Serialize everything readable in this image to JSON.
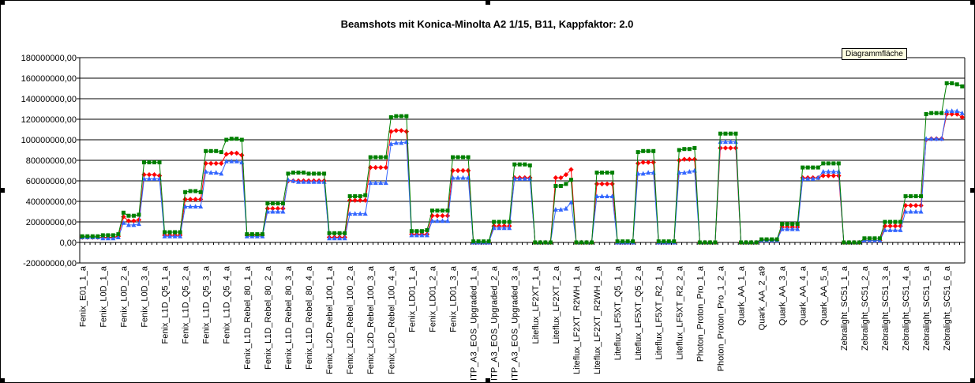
{
  "tooltip": "Diagrammfläche",
  "colors": {
    "red": "#ff0000",
    "blue": "#3366ff",
    "green": "#008000",
    "grid": "#000000",
    "background": "#ffffff"
  },
  "chart_data": {
    "type": "line",
    "title": "Beamshots mit Konica-Minolta A2 1/15, B11, Kappfaktor: 2.0",
    "xlabel": "",
    "ylabel": "",
    "ylim": [
      -20000000,
      180000000
    ],
    "yticks": [
      -20000000,
      0,
      20000000,
      40000000,
      60000000,
      80000000,
      100000000,
      120000000,
      140000000,
      160000000,
      180000000
    ],
    "ytick_labels": [
      "-20000000,00",
      "0,00",
      "20000000,00",
      "40000000,00",
      "60000000,00",
      "80000000,00",
      "100000000,00",
      "120000000,00",
      "140000000,00",
      "160000000,00",
      "180000000,00"
    ],
    "grid": true,
    "legend": "none",
    "categories": [
      "Fenix_E01_1_a",
      "Fenix_L0D_1_a",
      "Fenix_L0D_2_a",
      "Fenix_L0D_3_a",
      "Fenix_L1D_Q5_1_a",
      "Fenix_L1D_Q5_2_a",
      "Fenix_L1D_Q5_3_a",
      "Fenix_L1D_Q5_4_a",
      "Fenix_L1D_Rebel_80_1_a",
      "Fenix_L1D_Rebel_80_2_a",
      "Fenix_L1D_Rebel_80_3_a",
      "Fenix_L1D_Rebel_80_4_a",
      "Fenix_L2D_Rebel_100_1_a",
      "Fenix_L2D_Rebel_100_2_a",
      "Fenix_L2D_Rebel_100_3_a",
      "Fenix_L2D_Rebel_100_4_a",
      "Fenix_LD01_1_a",
      "Fenix_LD01_2_a",
      "Fenix_LD01_3_a",
      "ITP_A3_EOS_Upgraded_1_a",
      "ITP_A3_EOS_Upgraded_2_a",
      "ITP_A3_EOS_Upgraded_3_a",
      "Liteflux_LF2XT_1_a",
      "Liteflux_LF2XT_2_a",
      "Liteflux_LF2XT_R2WH_1_a",
      "Liteflux_LF2XT_R2WH_2_a",
      "Liteflux_LF5XT_Q5_1_a",
      "Liteflux_LF5XT_Q5_2_a",
      "Liteflux_LF5XT_R2_1_a",
      "Liteflux_LF5XT_R2_2_a",
      "Photon_Proton_Pro_1_a",
      "Photon_Proton_Pro_1_2_a",
      "Quark_AA_1_a",
      "Quark_AA_2_a9",
      "Quark_AA_3_a",
      "Quark_AA_4_a",
      "Quark_AA_5_a",
      "Zebralight_SC51_1_a",
      "Zebralight_SC51_2_a",
      "Zebralight_SC51_3_a",
      "Zebralight_SC51_4_a",
      "Zebralight_SC51_5_a",
      "Zebralight_SC51_6_a"
    ],
    "points_per_category": 4,
    "series": [
      {
        "color": "#ff0000",
        "marker": "diamond",
        "values": [
          [
            5000000,
            5000000,
            5000000,
            5000000
          ],
          [
            5000000,
            5000000,
            5000000,
            6000000
          ],
          [
            25000000,
            21000000,
            21000000,
            22000000
          ],
          [
            66000000,
            66000000,
            66000000,
            65000000
          ],
          [
            7000000,
            7000000,
            7000000,
            7000000
          ],
          [
            42000000,
            42000000,
            42000000,
            42000000
          ],
          [
            77000000,
            77000000,
            77000000,
            77000000
          ],
          [
            86000000,
            87000000,
            87000000,
            85000000
          ],
          [
            7000000,
            7000000,
            7000000,
            7000000
          ],
          [
            33000000,
            33000000,
            33000000,
            33000000
          ],
          [
            60000000,
            60000000,
            60000000,
            60000000
          ],
          [
            60000000,
            60000000,
            60000000,
            60000000
          ],
          [
            5000000,
            5000000,
            5000000,
            5000000
          ],
          [
            41000000,
            41000000,
            41000000,
            41000000
          ],
          [
            73000000,
            73000000,
            73000000,
            73000000
          ],
          [
            108000000,
            109000000,
            109000000,
            108000000
          ],
          [
            8000000,
            8000000,
            8000000,
            8000000
          ],
          [
            26000000,
            26000000,
            26000000,
            26000000
          ],
          [
            70000000,
            70000000,
            70000000,
            70000000
          ],
          [
            0,
            0,
            0,
            0
          ],
          [
            16000000,
            16000000,
            16000000,
            16000000
          ],
          [
            63000000,
            63000000,
            63000000,
            63000000
          ],
          [
            0,
            0,
            0,
            0
          ],
          [
            63000000,
            63000000,
            66000000,
            71000000
          ],
          [
            0,
            0,
            0,
            0
          ],
          [
            57000000,
            57000000,
            57000000,
            57000000
          ],
          [
            0,
            0,
            0,
            0
          ],
          [
            77000000,
            78000000,
            78000000,
            78000000
          ],
          [
            0,
            0,
            0,
            0
          ],
          [
            80000000,
            81000000,
            81000000,
            81000000
          ],
          [
            0,
            0,
            0,
            0
          ],
          [
            92000000,
            92000000,
            92000000,
            92000000
          ],
          [
            0,
            0,
            0,
            0
          ],
          [
            2000000,
            2000000,
            2000000,
            2000000
          ],
          [
            15000000,
            15000000,
            15000000,
            15000000
          ],
          [
            63000000,
            63000000,
            63000000,
            63000000
          ],
          [
            65000000,
            65000000,
            65000000,
            65000000
          ],
          [
            0,
            0,
            0,
            0
          ],
          [
            2000000,
            2000000,
            2000000,
            2000000
          ],
          [
            16000000,
            16000000,
            16000000,
            16000000
          ],
          [
            36000000,
            36000000,
            36000000,
            36000000
          ],
          [
            100000000,
            101000000,
            101000000,
            101000000
          ],
          [
            125000000,
            125000000,
            125000000,
            122000000
          ]
        ]
      },
      {
        "color": "#3366ff",
        "marker": "triangle",
        "values": [
          [
            5000000,
            5000000,
            5000000,
            5000000
          ],
          [
            4000000,
            4000000,
            4000000,
            5000000
          ],
          [
            19000000,
            17000000,
            17000000,
            18000000
          ],
          [
            62000000,
            62000000,
            62000000,
            62000000
          ],
          [
            6000000,
            6000000,
            6000000,
            6000000
          ],
          [
            35000000,
            35000000,
            35000000,
            35000000
          ],
          [
            69000000,
            68000000,
            68000000,
            67000000
          ],
          [
            79000000,
            79000000,
            79000000,
            78000000
          ],
          [
            6000000,
            6000000,
            6000000,
            6000000
          ],
          [
            30000000,
            30000000,
            30000000,
            30000000
          ],
          [
            61000000,
            60000000,
            59000000,
            59000000
          ],
          [
            59000000,
            59000000,
            59000000,
            59000000
          ],
          [
            4000000,
            4000000,
            4000000,
            4000000
          ],
          [
            28000000,
            28000000,
            28000000,
            28000000
          ],
          [
            58000000,
            58000000,
            58000000,
            58000000
          ],
          [
            96000000,
            97000000,
            97000000,
            98000000
          ],
          [
            7000000,
            7000000,
            7000000,
            7000000
          ],
          [
            21000000,
            21000000,
            21000000,
            21000000
          ],
          [
            63000000,
            63000000,
            63000000,
            63000000
          ],
          [
            0,
            0,
            0,
            0
          ],
          [
            14000000,
            14000000,
            14000000,
            14000000
          ],
          [
            62000000,
            62000000,
            62000000,
            62000000
          ],
          [
            0,
            0,
            0,
            0
          ],
          [
            32000000,
            32000000,
            33000000,
            39000000
          ],
          [
            0,
            0,
            0,
            0
          ],
          [
            45000000,
            45000000,
            45000000,
            45000000
          ],
          [
            0,
            0,
            0,
            0
          ],
          [
            67000000,
            67000000,
            68000000,
            68000000
          ],
          [
            0,
            0,
            0,
            0
          ],
          [
            68000000,
            68000000,
            69000000,
            70000000
          ],
          [
            0,
            0,
            0,
            0
          ],
          [
            98000000,
            98000000,
            98000000,
            98000000
          ],
          [
            0,
            0,
            0,
            0
          ],
          [
            2000000,
            2000000,
            2000000,
            2000000
          ],
          [
            13000000,
            13000000,
            13000000,
            13000000
          ],
          [
            62000000,
            62000000,
            62000000,
            63000000
          ],
          [
            69000000,
            69000000,
            69000000,
            69000000
          ],
          [
            0,
            0,
            0,
            0
          ],
          [
            2000000,
            2000000,
            2000000,
            2000000
          ],
          [
            12000000,
            12000000,
            12000000,
            12000000
          ],
          [
            30000000,
            30000000,
            30000000,
            30000000
          ],
          [
            101000000,
            101000000,
            101000000,
            101000000
          ],
          [
            128000000,
            128000000,
            128000000,
            126000000
          ]
        ]
      },
      {
        "color": "#008000",
        "marker": "square",
        "values": [
          [
            6000000,
            6000000,
            6000000,
            6000000
          ],
          [
            7000000,
            7000000,
            7000000,
            8000000
          ],
          [
            29000000,
            26000000,
            26000000,
            27000000
          ],
          [
            78000000,
            78000000,
            78000000,
            78000000
          ],
          [
            10000000,
            10000000,
            10000000,
            10000000
          ],
          [
            49000000,
            50000000,
            50000000,
            49000000
          ],
          [
            89000000,
            89000000,
            89000000,
            88000000
          ],
          [
            100000000,
            101000000,
            101000000,
            100000000
          ],
          [
            8000000,
            8000000,
            8000000,
            8000000
          ],
          [
            38000000,
            38000000,
            38000000,
            38000000
          ],
          [
            67000000,
            68000000,
            68000000,
            68000000
          ],
          [
            67000000,
            67000000,
            67000000,
            67000000
          ],
          [
            9000000,
            9000000,
            9000000,
            9000000
          ],
          [
            45000000,
            45000000,
            45000000,
            46000000
          ],
          [
            83000000,
            83000000,
            83000000,
            83000000
          ],
          [
            122000000,
            123000000,
            123000000,
            123000000
          ],
          [
            11000000,
            11000000,
            11000000,
            12000000
          ],
          [
            31000000,
            31000000,
            31000000,
            31000000
          ],
          [
            83000000,
            83000000,
            83000000,
            83000000
          ],
          [
            1000000,
            1000000,
            1000000,
            1000000
          ],
          [
            20000000,
            20000000,
            20000000,
            20000000
          ],
          [
            76000000,
            76000000,
            76000000,
            75000000
          ],
          [
            0,
            0,
            0,
            0
          ],
          [
            55000000,
            55000000,
            57000000,
            61000000
          ],
          [
            0,
            0,
            0,
            0
          ],
          [
            68000000,
            68000000,
            68000000,
            68000000
          ],
          [
            1000000,
            1000000,
            1000000,
            1000000
          ],
          [
            88000000,
            89000000,
            89000000,
            89000000
          ],
          [
            1000000,
            1000000,
            1000000,
            1000000
          ],
          [
            90000000,
            91000000,
            91000000,
            92000000
          ],
          [
            0,
            0,
            0,
            0
          ],
          [
            106000000,
            106000000,
            106000000,
            106000000
          ],
          [
            0,
            0,
            0,
            0
          ],
          [
            3000000,
            3000000,
            3000000,
            3000000
          ],
          [
            18000000,
            18000000,
            18000000,
            18000000
          ],
          [
            73000000,
            73000000,
            73000000,
            73000000
          ],
          [
            77000000,
            77000000,
            77000000,
            77000000
          ],
          [
            0,
            0,
            0,
            0
          ],
          [
            4000000,
            4000000,
            4000000,
            4000000
          ],
          [
            20000000,
            20000000,
            20000000,
            20000000
          ],
          [
            45000000,
            45000000,
            45000000,
            45000000
          ],
          [
            125000000,
            126000000,
            126000000,
            126000000
          ],
          [
            155000000,
            155000000,
            154000000,
            152000000
          ]
        ]
      }
    ]
  }
}
